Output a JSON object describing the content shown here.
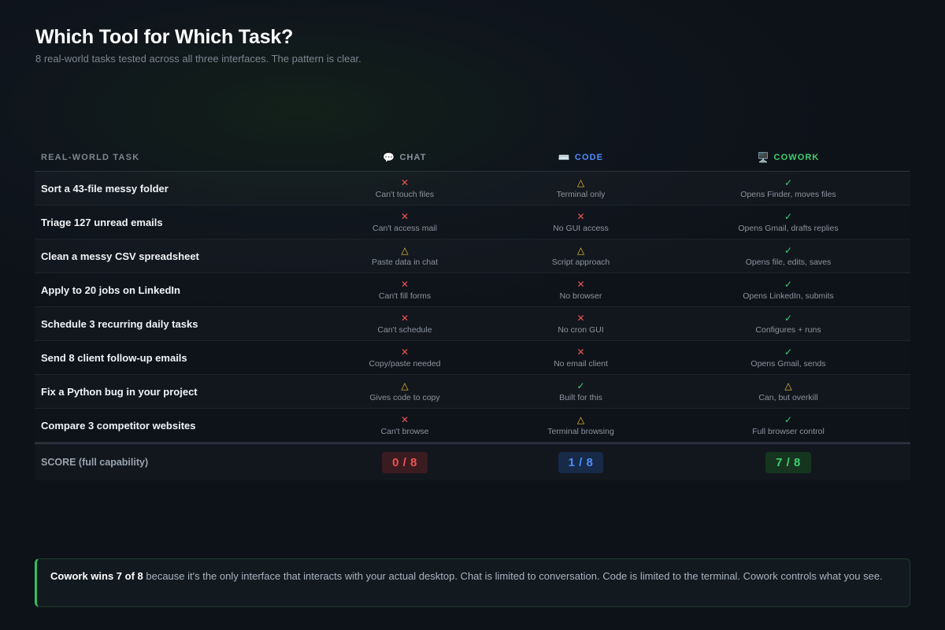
{
  "title": "Which Tool for Which Task?",
  "subtitle": "8 real-world tasks tested across all three interfaces. The pattern is clear.",
  "table": {
    "headers": {
      "task": "REAL-WORLD TASK",
      "chat": {
        "icon": "💬",
        "label": "CHAT"
      },
      "code": {
        "icon": "⌨️",
        "label": "CODE"
      },
      "cowork": {
        "icon": "🖥️",
        "label": "COWORK"
      }
    },
    "rows": [
      {
        "task": "Sort a 43-file messy folder",
        "chat": {
          "status": "no",
          "mark": "✕",
          "note": "Can't touch files"
        },
        "code": {
          "status": "partial",
          "mark": "△",
          "note": "Terminal only"
        },
        "cowork": {
          "status": "yes",
          "mark": "✓",
          "note": "Opens Finder, moves files"
        }
      },
      {
        "task": "Triage 127 unread emails",
        "chat": {
          "status": "no",
          "mark": "✕",
          "note": "Can't access mail"
        },
        "code": {
          "status": "no",
          "mark": "✕",
          "note": "No GUI access"
        },
        "cowork": {
          "status": "yes",
          "mark": "✓",
          "note": "Opens Gmail, drafts replies"
        }
      },
      {
        "task": "Clean a messy CSV spreadsheet",
        "chat": {
          "status": "partial",
          "mark": "△",
          "note": "Paste data in chat"
        },
        "code": {
          "status": "partial",
          "mark": "△",
          "note": "Script approach"
        },
        "cowork": {
          "status": "yes",
          "mark": "✓",
          "note": "Opens file, edits, saves"
        }
      },
      {
        "task": "Apply to 20 jobs on LinkedIn",
        "chat": {
          "status": "no",
          "mark": "✕",
          "note": "Can't fill forms"
        },
        "code": {
          "status": "no",
          "mark": "✕",
          "note": "No browser"
        },
        "cowork": {
          "status": "yes",
          "mark": "✓",
          "note": "Opens LinkedIn, submits"
        }
      },
      {
        "task": "Schedule 3 recurring daily tasks",
        "chat": {
          "status": "no",
          "mark": "✕",
          "note": "Can't schedule"
        },
        "code": {
          "status": "no",
          "mark": "✕",
          "note": "No cron GUI"
        },
        "cowork": {
          "status": "yes",
          "mark": "✓",
          "note": "Configures + runs"
        }
      },
      {
        "task": "Send 8 client follow-up emails",
        "chat": {
          "status": "no",
          "mark": "✕",
          "note": "Copy/paste needed"
        },
        "code": {
          "status": "no",
          "mark": "✕",
          "note": "No email client"
        },
        "cowork": {
          "status": "yes",
          "mark": "✓",
          "note": "Opens Gmail, sends"
        }
      },
      {
        "task": "Fix a Python bug in your project",
        "chat": {
          "status": "partial",
          "mark": "△",
          "note": "Gives code to copy"
        },
        "code": {
          "status": "yes",
          "mark": "✓",
          "note": "Built for this"
        },
        "cowork": {
          "status": "partial",
          "mark": "△",
          "note": "Can, but overkill"
        }
      },
      {
        "task": "Compare 3 competitor websites",
        "chat": {
          "status": "no",
          "mark": "✕",
          "note": "Can't browse"
        },
        "code": {
          "status": "partial",
          "mark": "△",
          "note": "Terminal browsing"
        },
        "cowork": {
          "status": "yes",
          "mark": "✓",
          "note": "Full browser control"
        }
      }
    ],
    "score": {
      "label": "SCORE (full capability)",
      "chat": "0 / 8",
      "code": "1 / 8",
      "cowork": "7 / 8"
    }
  },
  "callout": {
    "bold": "Cowork wins 7 of 8",
    "text": " because it's the only interface that interacts with your actual desktop. Chat is limited to conversation. Code is limited to the terminal. Cowork controls what you see."
  },
  "colors": {
    "no": "#f05454",
    "partial": "#f2c230",
    "yes": "#3ecf6e",
    "code_accent": "#4c8dff",
    "cowork_accent": "#3ecf6e"
  }
}
